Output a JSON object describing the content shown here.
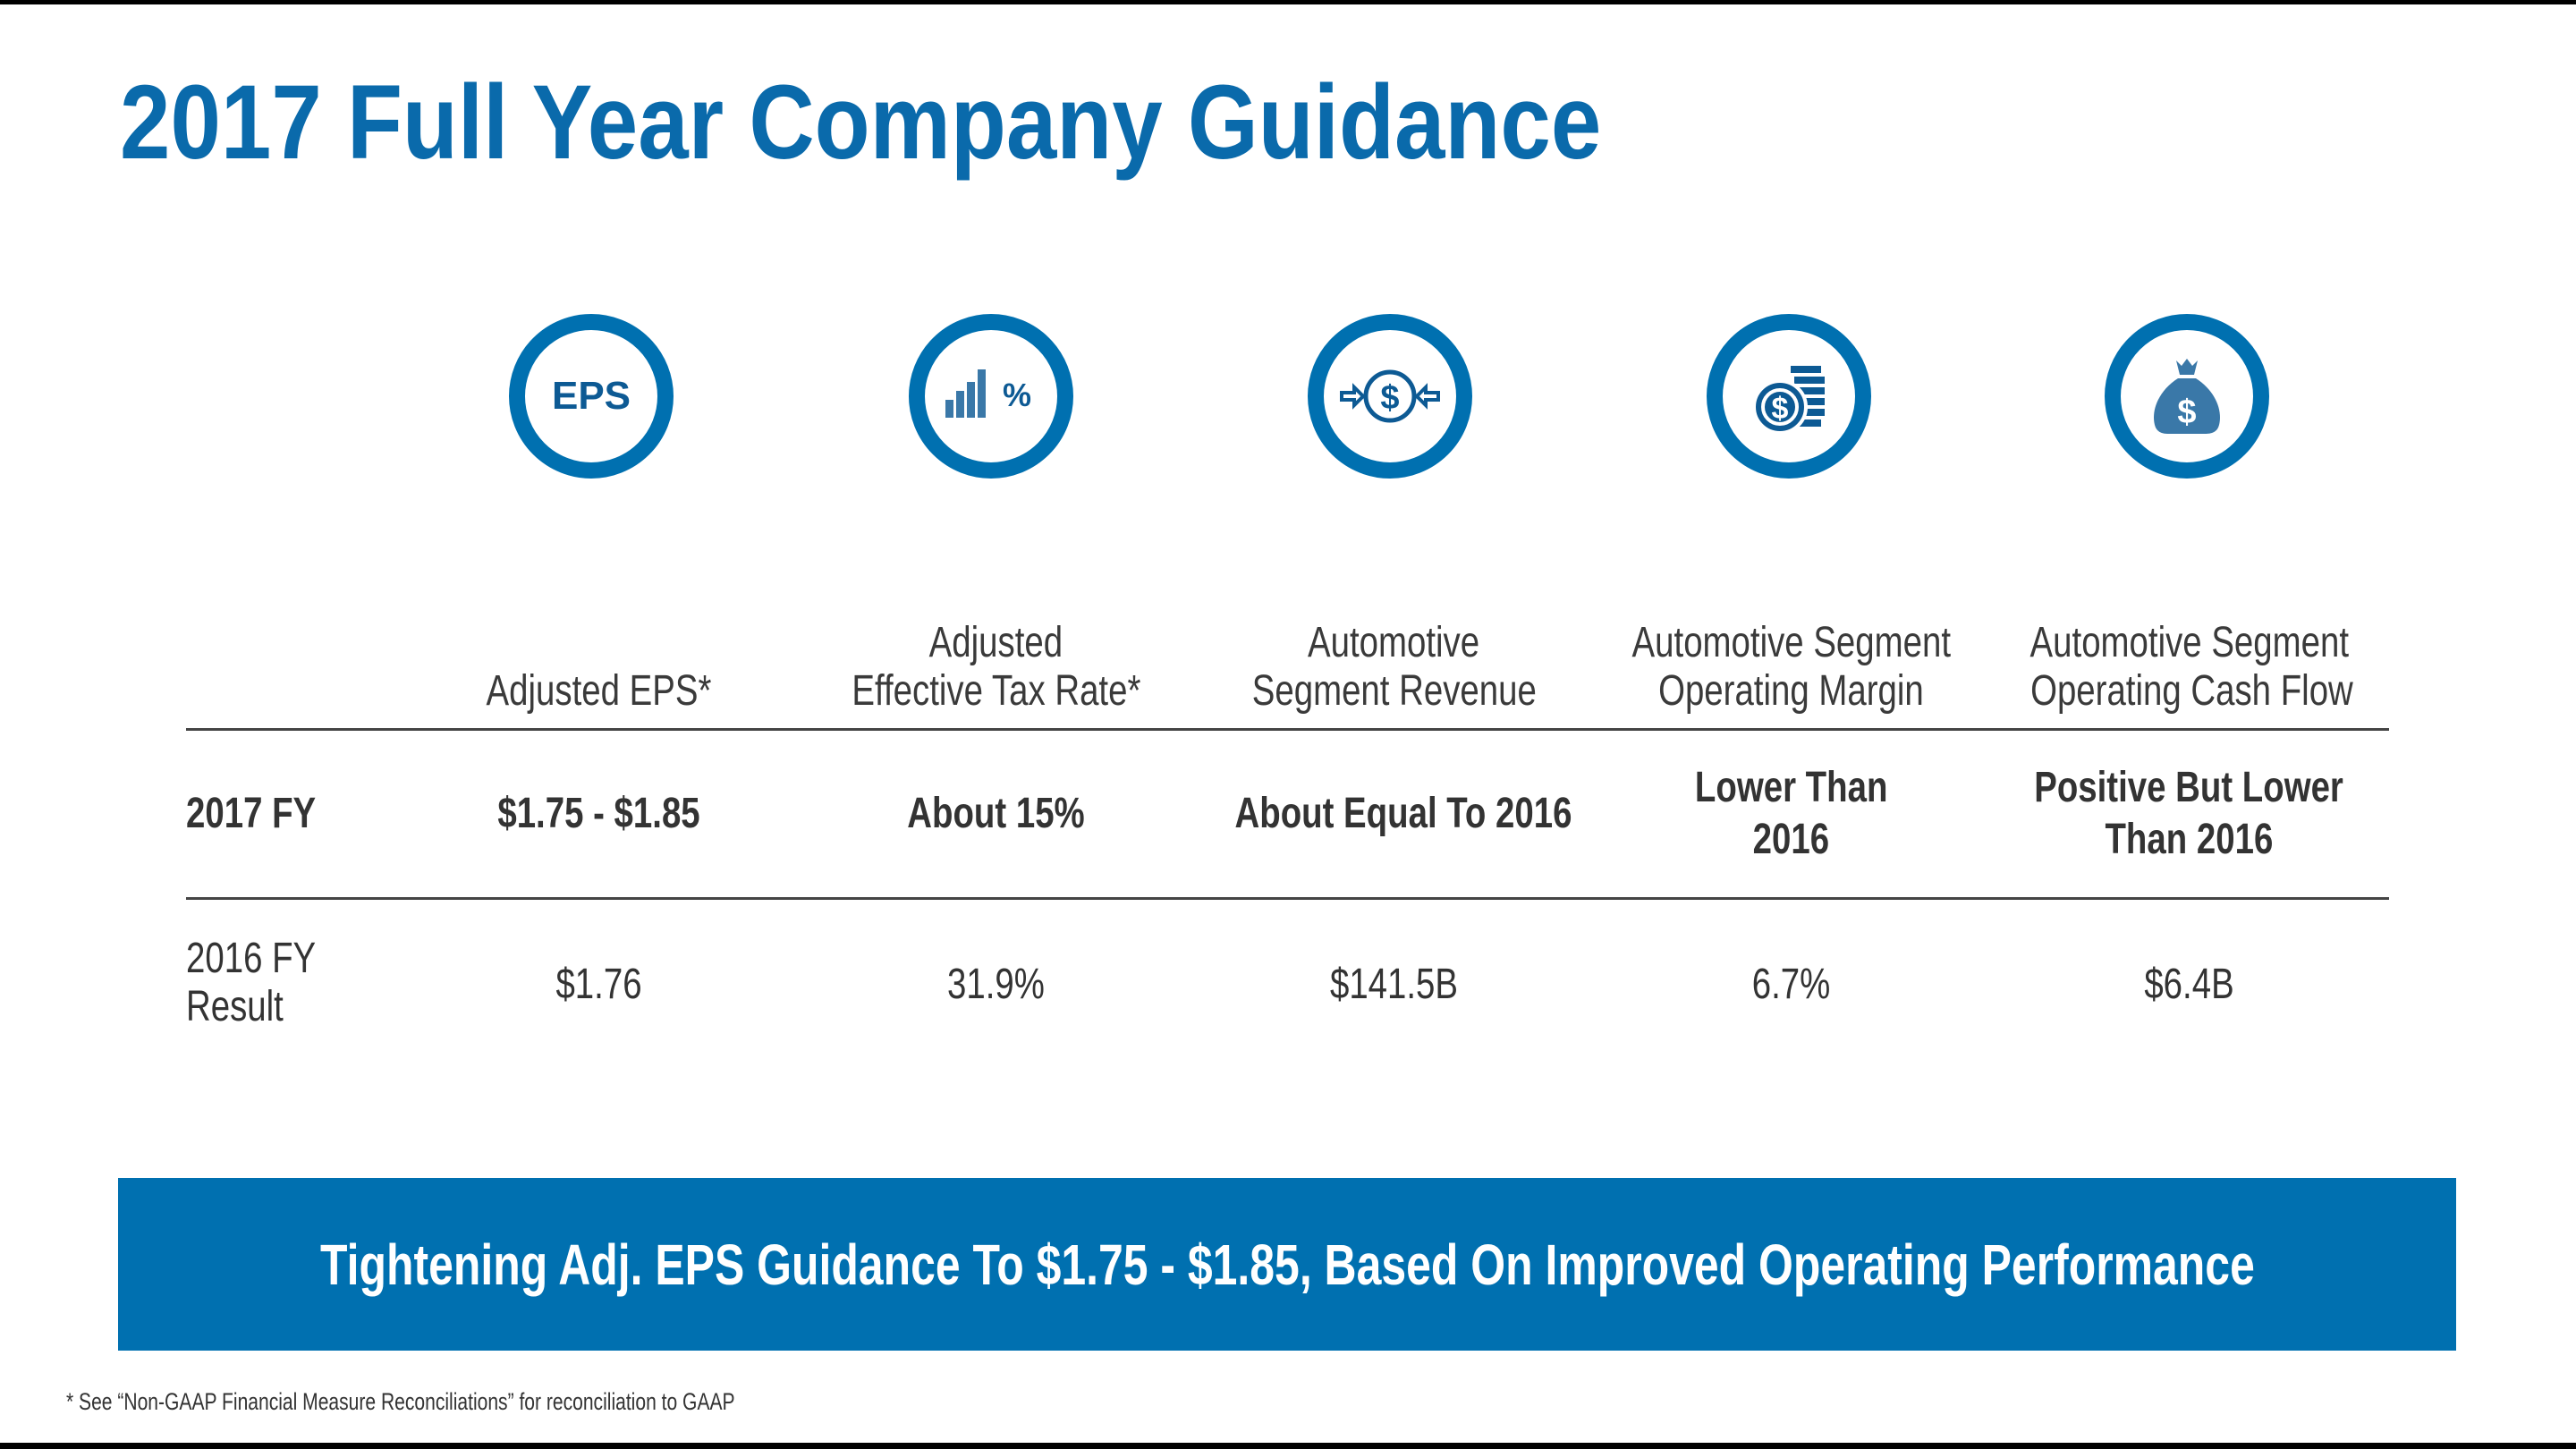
{
  "title": "2017 Full Year Company Guidance",
  "colors": {
    "accent": "#0070b0",
    "icon_dark": "#0d5a94",
    "icon_light": "#3a78a8"
  },
  "columns": [
    {
      "icon": "eps-icon",
      "icon_text": "EPS",
      "header_lines": [
        "Adjusted EPS*"
      ]
    },
    {
      "icon": "bar-chart-percent-icon",
      "icon_text": "%",
      "header_lines": [
        "Adjusted",
        "Effective Tax Rate*"
      ]
    },
    {
      "icon": "dollar-arrows-icon",
      "icon_text": "$",
      "header_lines": [
        "Automotive",
        "Segment Revenue"
      ]
    },
    {
      "icon": "coin-stack-icon",
      "icon_text": "$",
      "header_lines": [
        "Automotive Segment",
        "Operating Margin"
      ]
    },
    {
      "icon": "money-bag-icon",
      "icon_text": "$",
      "header_lines": [
        "Automotive Segment",
        "Operating Cash Flow"
      ]
    }
  ],
  "rows": [
    {
      "label_lines": [
        "2017 FY"
      ],
      "values": [
        [
          "$1.75 - $1.85"
        ],
        [
          "About 15%"
        ],
        [
          "About Equal To 2016"
        ],
        [
          "Lower Than",
          "2016"
        ],
        [
          "Positive But Lower",
          "Than 2016"
        ]
      ]
    },
    {
      "label_lines": [
        "2016 FY",
        "Result"
      ],
      "values": [
        [
          "$1.76"
        ],
        [
          "31.9%"
        ],
        [
          "$141.5B"
        ],
        [
          "6.7%"
        ],
        [
          "$6.4B"
        ]
      ]
    }
  ],
  "banner": "Tightening Adj. EPS Guidance To $1.75 - $1.85, Based On Improved Operating Performance",
  "footnote": "*  See “Non-GAAP Financial Measure Reconciliations” for reconciliation to GAAP"
}
